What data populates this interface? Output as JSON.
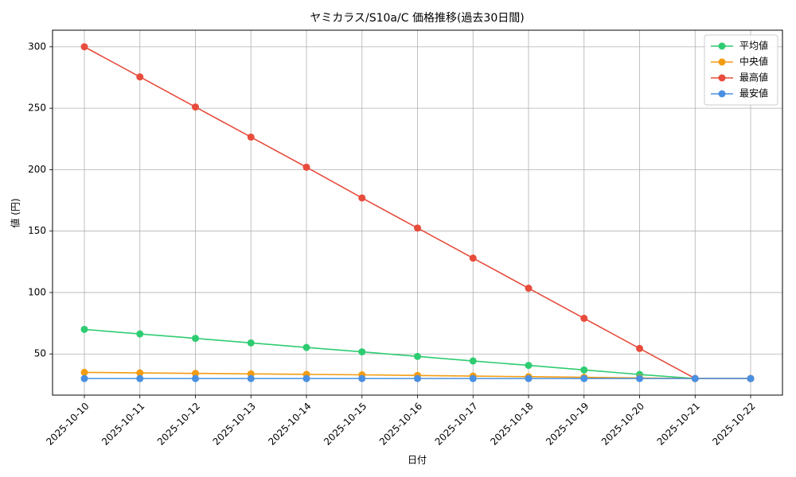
{
  "chart_data": {
    "type": "line",
    "title": "ヤミカラス/S10a/C 価格推移(過去30日間)",
    "x_label": "日付",
    "y_label": "値 (円)",
    "categories": [
      "2025-10-10",
      "2025-10-11",
      "2025-10-12",
      "2025-10-13",
      "2025-10-14",
      "2025-10-15",
      "2025-10-16",
      "2025-10-17",
      "2025-10-18",
      "2025-10-19",
      "2025-10-20",
      "2025-10-21",
      "2025-10-22"
    ],
    "series": [
      {
        "name": "平均値",
        "color": "#2ecc71",
        "values": [
          70,
          66.3,
          62.7,
          59,
          55.3,
          51.7,
          48,
          44.3,
          40.7,
          37,
          33.3,
          30,
          30
        ]
      },
      {
        "name": "中央値",
        "color": "#f39c12",
        "values": [
          35,
          34.6,
          34.2,
          33.8,
          33.4,
          33,
          32.5,
          32,
          31.5,
          31,
          30.5,
          30,
          30
        ]
      },
      {
        "name": "最高値",
        "color": "#e74c3c",
        "values": [
          300,
          275.5,
          251,
          226.5,
          202,
          177,
          152.5,
          128,
          103.5,
          79,
          54.5,
          30,
          30
        ]
      },
      {
        "name": "最安値",
        "color": "#4a90e2",
        "values": [
          30,
          30,
          30,
          30,
          30,
          30,
          30,
          30,
          30,
          30,
          30,
          30,
          30
        ]
      }
    ],
    "ylim": [
      16.5,
      313.5
    ],
    "yticks": [
      50,
      100,
      150,
      200,
      250,
      300
    ],
    "grid": true,
    "legend": "upper right"
  }
}
